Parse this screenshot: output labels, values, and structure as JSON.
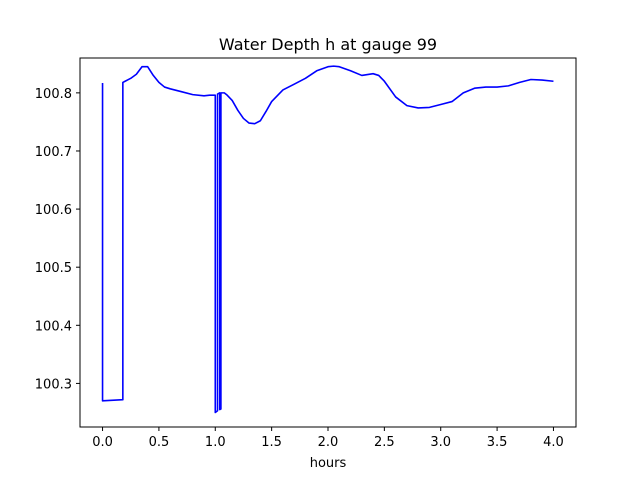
{
  "chart_data": {
    "type": "line",
    "title": "Water Depth h at gauge 99",
    "xlabel": "hours",
    "ylabel": "",
    "xlim": [
      -0.2,
      4.2
    ],
    "ylim": [
      100.225,
      100.86
    ],
    "xticks": [
      0.0,
      0.5,
      1.0,
      1.5,
      2.0,
      2.5,
      3.0,
      3.5,
      4.0
    ],
    "xtick_labels": [
      "0.0",
      "0.5",
      "1.0",
      "1.5",
      "2.0",
      "2.5",
      "3.0",
      "3.5",
      "4.0"
    ],
    "yticks": [
      100.3,
      100.4,
      100.5,
      100.6,
      100.7,
      100.8
    ],
    "ytick_labels": [
      "100.3",
      "100.4",
      "100.5",
      "100.6",
      "100.7",
      "100.8"
    ],
    "grid": false,
    "series": [
      {
        "color": "#0000ff",
        "x": [
          0.0,
          0.0,
          0.18,
          0.18,
          0.2,
          0.25,
          0.3,
          0.35,
          0.4,
          0.45,
          0.5,
          0.55,
          0.6,
          0.7,
          0.8,
          0.9,
          0.95,
          1.0,
          1.0,
          1.02,
          1.02,
          1.04,
          1.04,
          1.05,
          1.05,
          1.08,
          1.1,
          1.15,
          1.2,
          1.25,
          1.3,
          1.35,
          1.4,
          1.45,
          1.5,
          1.6,
          1.7,
          1.8,
          1.9,
          2.0,
          2.05,
          2.1,
          2.2,
          2.3,
          2.4,
          2.45,
          2.5,
          2.6,
          2.7,
          2.8,
          2.9,
          3.0,
          3.1,
          3.2,
          3.3,
          3.4,
          3.5,
          3.6,
          3.7,
          3.8,
          3.9,
          4.0
        ],
        "y": [
          100.817,
          100.27,
          100.272,
          100.818,
          100.82,
          100.825,
          100.832,
          100.845,
          100.845,
          100.83,
          100.818,
          100.81,
          100.807,
          100.802,
          100.797,
          100.795,
          100.796,
          100.796,
          100.25,
          100.253,
          100.798,
          100.8,
          100.255,
          100.256,
          100.8,
          100.8,
          100.797,
          100.787,
          100.77,
          100.756,
          100.748,
          100.747,
          100.752,
          100.768,
          100.785,
          100.805,
          100.815,
          100.825,
          100.838,
          100.845,
          100.846,
          100.845,
          100.838,
          100.83,
          100.833,
          100.83,
          100.82,
          100.793,
          100.778,
          100.774,
          100.775,
          100.78,
          100.785,
          100.8,
          100.808,
          100.81,
          100.81,
          100.812,
          100.818,
          100.823,
          100.822,
          100.82
        ]
      }
    ]
  }
}
